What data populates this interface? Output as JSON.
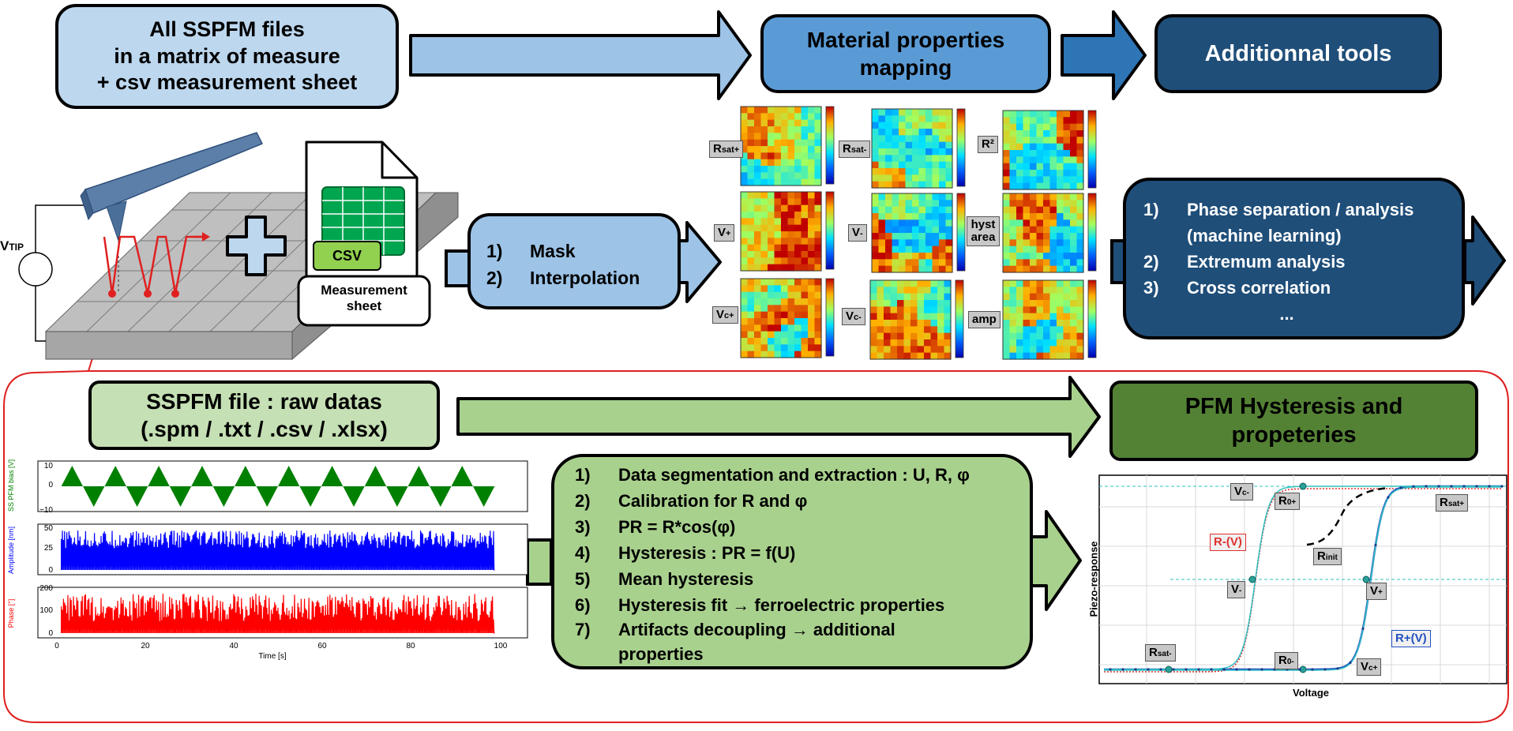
{
  "top": {
    "input_box": [
      "All SSPFM files",
      "in a matrix of measure",
      "+ csv measurement sheet"
    ],
    "mapping_box": [
      "Material properties",
      "mapping"
    ],
    "tools_box": "Additionnal tools"
  },
  "setup": {
    "vtip_label": "V",
    "vtip_sub": "TIP",
    "csv_label": "CSV",
    "sheet_label": [
      "Measurement",
      "sheet"
    ]
  },
  "mapping_steps": [
    {
      "n": "1)",
      "t": "Mask"
    },
    {
      "n": "2)",
      "t": "Interpolation"
    }
  ],
  "tools_steps": [
    {
      "n": "1)",
      "t": "Phase separation / analysis"
    },
    {
      "n": "",
      "t": "(machine learning)"
    },
    {
      "n": "2)",
      "t": "Extremum analysis"
    },
    {
      "n": "3)",
      "t": "Cross correlation"
    }
  ],
  "tools_more": "...",
  "maps": [
    {
      "label": "R",
      "sub": "sat+"
    },
    {
      "label": "R",
      "sub": "sat-"
    },
    {
      "label": "R²",
      "sub": ""
    },
    {
      "label": "V",
      "sub": "+"
    },
    {
      "label": "V",
      "sub": "-"
    },
    {
      "label": "hyst area",
      "sub": ""
    },
    {
      "label": "V",
      "sub": "c+"
    },
    {
      "label": "V",
      "sub": "c-"
    },
    {
      "label": "amp",
      "sub": ""
    }
  ],
  "bottom": {
    "raw_box": [
      "SSPFM file : raw datas",
      "(.spm / .txt / .csv / .xlsx)"
    ],
    "result_box": [
      "PFM Hysteresis and",
      "propeteries"
    ]
  },
  "analysis_steps": [
    {
      "n": "1)",
      "t": "Data segmentation and extraction : U, R, φ"
    },
    {
      "n": "2)",
      "t": "Calibration for R and φ"
    },
    {
      "n": "3)",
      "t": "PR = R*cos(φ)"
    },
    {
      "n": "4)",
      "t": "Hysteresis : PR = f(U)"
    },
    {
      "n": "5)",
      "t": "Mean hysteresis"
    },
    {
      "n": "6)",
      "t": "Hysteresis fit → ferroelectric properties"
    },
    {
      "n": "7)",
      "t": "Artifacts decoupling → additional properties"
    }
  ],
  "signal_plots": {
    "panels": [
      {
        "ylabel": "SS PFM bias [V]",
        "color": "#008000",
        "yticks": [
          "10",
          "0",
          "−10"
        ]
      },
      {
        "ylabel": "Amplitude [nm]",
        "color": "#0000ff",
        "yticks": [
          "50",
          "25",
          "0"
        ]
      },
      {
        "ylabel": "Phase [°]",
        "color": "#ff0000",
        "yticks": [
          "200",
          "100",
          "0"
        ]
      }
    ],
    "xticks": [
      "0",
      "20",
      "40",
      "60",
      "80",
      "100"
    ],
    "xlabel": "Time [s]"
  },
  "hysteresis_plot": {
    "xlabel": "Voltage",
    "ylabel": "Piezo-response",
    "labels": [
      {
        "text": "V",
        "sub": "c-"
      },
      {
        "text": "R",
        "sub": "0+"
      },
      {
        "text": "R",
        "sub": "sat+"
      },
      {
        "text": "R",
        "sub": "init"
      },
      {
        "text": "V",
        "sub": "-"
      },
      {
        "text": "V",
        "sub": "+"
      },
      {
        "text": "R",
        "sub": "sat-"
      },
      {
        "text": "R",
        "sub": "0-"
      },
      {
        "text": "V",
        "sub": "c+"
      }
    ],
    "branch_up": "R+(V)",
    "branch_down": "R-(V)",
    "colors": {
      "up": "#e03030",
      "down": "#2050c0",
      "fit": "#30c0c0",
      "init": "#000000"
    }
  },
  "colors": {
    "light_blue": "#bdd7ee",
    "mid_blue": "#9dc3e6",
    "blue": "#5b9bd5",
    "navy": "#1f4e79",
    "light_green": "#c5e0b4",
    "green": "#a9d18e",
    "dark_green": "#548235",
    "frame_red": "#e02020"
  }
}
